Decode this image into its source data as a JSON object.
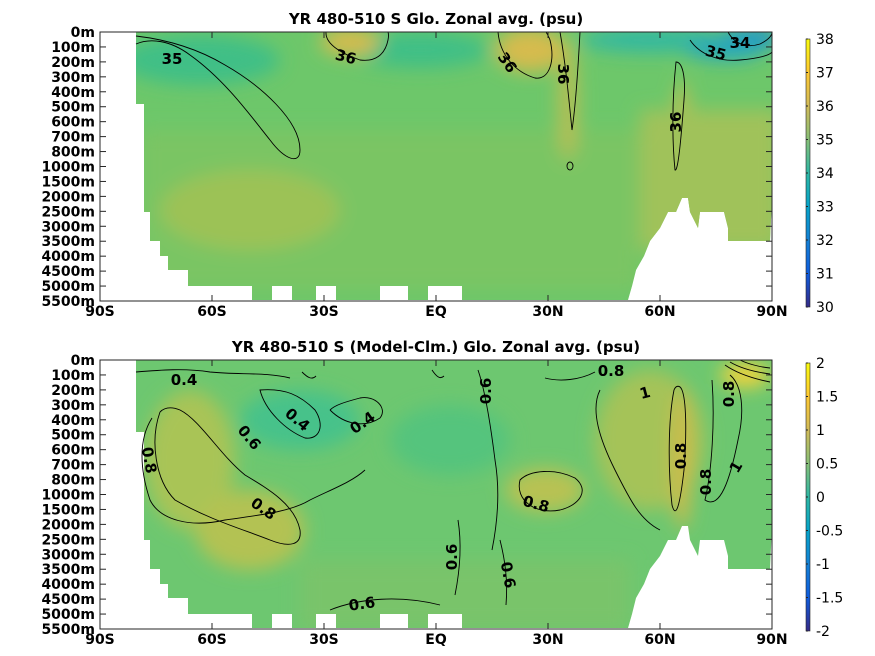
{
  "chart_data": [
    {
      "type": "heatmap",
      "title": "YR 480-510 S Glo. Zonal avg. (psu)",
      "x_ticks": [
        "90S",
        "60S",
        "30S",
        "EQ",
        "30N",
        "60N",
        "90N"
      ],
      "y_ticks": [
        "0m",
        "100m",
        "200m",
        "300m",
        "400m",
        "500m",
        "600m",
        "700m",
        "800m",
        "1000m",
        "1500m",
        "2000m",
        "2500m",
        "3000m",
        "3500m",
        "4000m",
        "4500m",
        "5000m",
        "5500m"
      ],
      "colorbar": {
        "min": 30,
        "max": 38,
        "ticks": [
          "38",
          "37",
          "36",
          "35",
          "34",
          "33",
          "32",
          "31",
          "30"
        ]
      },
      "contour_labels": [
        "35",
        "36",
        "36",
        "36",
        "36",
        "35",
        "34"
      ],
      "regions_values": {
        "background": 35.0,
        "subtropical_N": 36.4,
        "subtropical_S": 36.2,
        "arctic": 33.5,
        "north_atlantic_60N": 36.2
      }
    },
    {
      "type": "heatmap",
      "title": "YR 480-510 S (Model-Clm.) Glo. Zonal avg. (psu)",
      "x_ticks": [
        "90S",
        "60S",
        "30S",
        "EQ",
        "30N",
        "60N",
        "90N"
      ],
      "y_ticks": [
        "0m",
        "100m",
        "200m",
        "300m",
        "400m",
        "500m",
        "600m",
        "700m",
        "800m",
        "1000m",
        "1500m",
        "2000m",
        "2500m",
        "3000m",
        "3500m",
        "4000m",
        "4500m",
        "5000m",
        "5500m"
      ],
      "colorbar": {
        "min": -2,
        "max": 2,
        "ticks": [
          "2",
          "1.5",
          "1",
          "0.5",
          "0",
          "-0.5",
          "-1",
          "-1.5",
          "-2"
        ]
      },
      "contour_labels": [
        "0.4",
        "0.4",
        "0.4",
        "0.6",
        "0.8",
        "0.8",
        "0.6",
        "0.8",
        "0.8",
        "1",
        "0.8",
        "0.8",
        "0.8",
        "1",
        "0.6",
        "0.6",
        "0.6"
      ],
      "regions_values": {
        "background": 0.6,
        "southern_60S": 0.9,
        "north_atlantic_60N": 1.1,
        "subtropical_N": 0.85,
        "arctic_surface": 1.8
      }
    }
  ]
}
